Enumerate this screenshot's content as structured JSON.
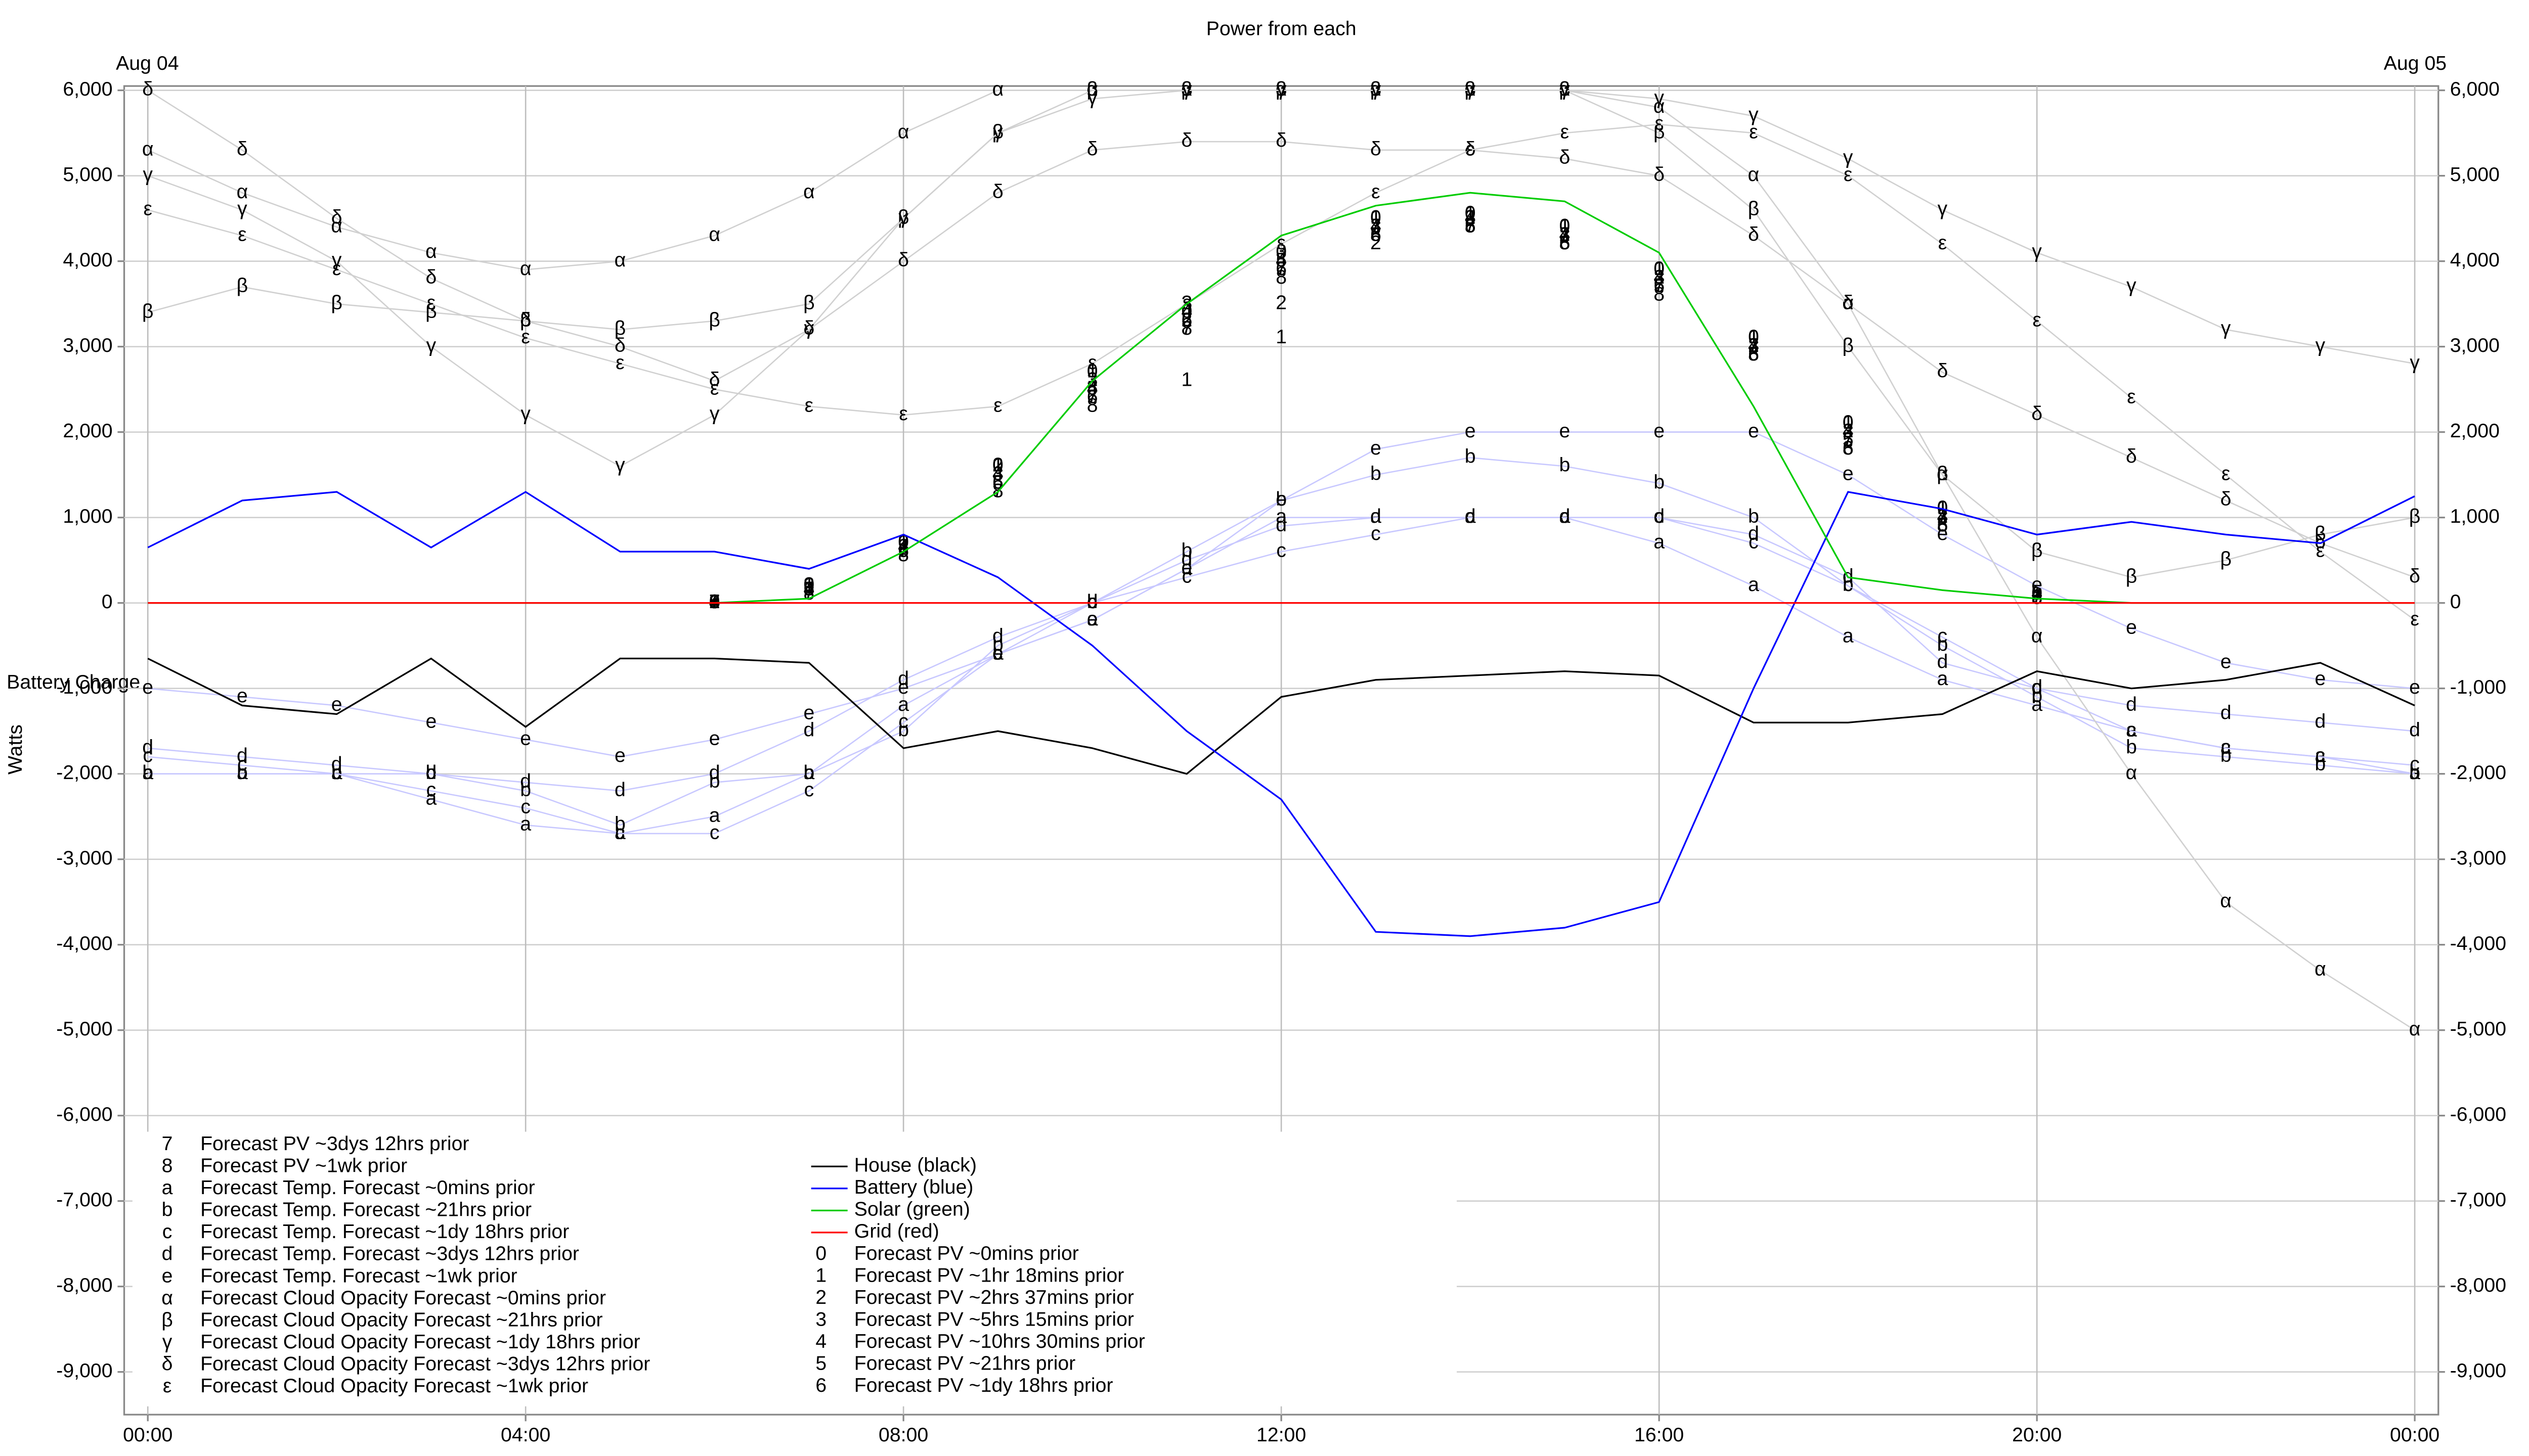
{
  "chart_data": {
    "type": "line",
    "title": "Power from each",
    "xlabel_left": "Aug 04",
    "xlabel_right": "Aug 05",
    "ylabel": "Watts",
    "annotation": "Battery Charge",
    "xlim": [
      -0.25,
      24.25
    ],
    "ylim": [
      -9500,
      6050
    ],
    "grid": true,
    "xticks": [
      {
        "value": 0,
        "label": "00:00"
      },
      {
        "value": 4,
        "label": "04:00"
      },
      {
        "value": 8,
        "label": "08:00"
      },
      {
        "value": 12,
        "label": "12:00"
      },
      {
        "value": 16,
        "label": "16:00"
      },
      {
        "value": 20,
        "label": "20:00"
      },
      {
        "value": 24,
        "label": "00:00"
      }
    ],
    "yticks": [
      {
        "value": -9000,
        "label": "-9,000"
      },
      {
        "value": -8000,
        "label": "-8,000"
      },
      {
        "value": -7000,
        "label": "-7,000"
      },
      {
        "value": -6000,
        "label": "-6,000"
      },
      {
        "value": -5000,
        "label": "-5,000"
      },
      {
        "value": -4000,
        "label": "-4,000"
      },
      {
        "value": -3000,
        "label": "-3,000"
      },
      {
        "value": -2000,
        "label": "-2,000"
      },
      {
        "value": -1000,
        "label": "-1,000"
      },
      0,
      {
        "value": 1000,
        "label": "1,000"
      },
      {
        "value": 2000,
        "label": "2,000"
      },
      {
        "value": 3000,
        "label": "3,000"
      },
      {
        "value": 4000,
        "label": "4,000"
      },
      {
        "value": 5000,
        "label": "5,000"
      },
      {
        "value": 6000,
        "label": "6,000"
      }
    ],
    "x": [
      0,
      1,
      2,
      3,
      4,
      5,
      6,
      7,
      8,
      9,
      10,
      11,
      12,
      13,
      14,
      15,
      16,
      17,
      18,
      19,
      20,
      21,
      22,
      23,
      24
    ],
    "series": [
      {
        "name": "House (black)",
        "color": "#000000",
        "line": true,
        "values": [
          -650,
          -1200,
          -1300,
          -650,
          -1450,
          -650,
          -650,
          -700,
          -1700,
          -1500,
          -1700,
          -2000,
          -1100,
          -900,
          -850,
          -800,
          -850,
          -1400,
          -1400,
          -1300,
          -800,
          -1000,
          -900,
          -700,
          -1200
        ]
      },
      {
        "name": "Battery (blue)",
        "color": "#0000ff",
        "line": true,
        "values": [
          650,
          1200,
          1300,
          650,
          1300,
          600,
          600,
          400,
          800,
          300,
          -500,
          -1500,
          -2300,
          -3850,
          -3900,
          -3800,
          -3500,
          -1000,
          1300,
          1100,
          800,
          950,
          800,
          700,
          1250
        ]
      },
      {
        "name": "Solar (green)",
        "color": "#00cc00",
        "line": true,
        "values": [
          0,
          0,
          0,
          0,
          0,
          0,
          0,
          50,
          600,
          1300,
          2600,
          3500,
          4300,
          4650,
          4800,
          4700,
          4100,
          2300,
          300,
          150,
          50,
          0,
          0,
          0,
          0
        ]
      },
      {
        "name": "Grid (red)",
        "color": "#ff0000",
        "line": true,
        "values": [
          0,
          0,
          0,
          0,
          0,
          0,
          0,
          0,
          0,
          0,
          0,
          0,
          0,
          0,
          0,
          0,
          0,
          0,
          0,
          0,
          0,
          0,
          0,
          0,
          0
        ]
      },
      {
        "name": "Forecast PV ~0mins prior",
        "marker": "0",
        "color": "#000000",
        "line": false,
        "values": [
          null,
          null,
          null,
          null,
          null,
          null,
          0,
          200,
          700,
          1600,
          2700,
          3400,
          4100,
          4500,
          4550,
          4400,
          3900,
          3100,
          2100,
          1100,
          100,
          null,
          null,
          null,
          null
        ]
      },
      {
        "name": "Forecast PV ~1hr 18mins prior",
        "marker": "1",
        "color": "#000000",
        "line": false,
        "values": [
          null,
          null,
          null,
          null,
          null,
          null,
          0,
          200,
          700,
          1600,
          2700,
          2600,
          3100,
          4500,
          4550,
          4400,
          3900,
          3100,
          2100,
          1100,
          100,
          null,
          null,
          null,
          null
        ]
      },
      {
        "name": "Forecast PV ~2hrs 37mins prior",
        "marker": "2",
        "color": "#000000",
        "line": false,
        "values": [
          null,
          null,
          null,
          null,
          null,
          null,
          0,
          200,
          700,
          1600,
          2600,
          3300,
          3500,
          4200,
          4500,
          4300,
          3800,
          3000,
          2000,
          1000,
          100,
          null,
          null,
          null,
          null
        ]
      },
      {
        "name": "Forecast PV ~5hrs 15mins prior",
        "marker": "3",
        "color": "#000000",
        "line": false,
        "values": [
          null,
          null,
          null,
          null,
          null,
          null,
          0,
          200,
          650,
          1500,
          2600,
          3500,
          4100,
          4400,
          4500,
          4300,
          3800,
          3000,
          2000,
          1000,
          100,
          null,
          null,
          null,
          null
        ]
      },
      {
        "name": "Forecast PV ~10hrs 30mins prior",
        "marker": "4",
        "color": "#000000",
        "line": false,
        "values": [
          null,
          null,
          null,
          null,
          null,
          null,
          0,
          150,
          650,
          1500,
          2500,
          3400,
          4000,
          4400,
          4500,
          4300,
          3800,
          3000,
          2000,
          1000,
          100,
          null,
          null,
          null,
          null
        ]
      },
      {
        "name": "Forecast PV ~21hrs prior",
        "marker": "5",
        "color": "#000000",
        "line": false,
        "values": [
          null,
          null,
          null,
          null,
          null,
          null,
          0,
          150,
          600,
          1400,
          2500,
          3300,
          4000,
          4300,
          4400,
          4200,
          3700,
          2900,
          1900,
          900,
          50,
          null,
          null,
          null,
          null
        ]
      },
      {
        "name": "Forecast PV ~1dy 18hrs prior",
        "marker": "6",
        "color": "#000000",
        "line": false,
        "values": [
          null,
          null,
          null,
          null,
          null,
          null,
          0,
          150,
          600,
          1400,
          2400,
          3300,
          3900,
          4300,
          4400,
          4200,
          3700,
          2900,
          1800,
          900,
          50,
          null,
          null,
          null,
          null
        ]
      },
      {
        "name": "Forecast PV ~3dys 12hrs prior",
        "marker": "7",
        "color": "#000000",
        "line": false,
        "values": [
          null,
          null,
          null,
          null,
          null,
          null,
          0,
          100,
          600,
          1300,
          2400,
          3200,
          3900,
          4400,
          4400,
          4300,
          3700,
          3000,
          1900,
          1000,
          50,
          null,
          null,
          null,
          null
        ]
      },
      {
        "name": "Forecast PV ~1wk prior",
        "marker": "8",
        "color": "#000000",
        "line": false,
        "values": [
          null,
          null,
          null,
          null,
          null,
          null,
          0,
          100,
          550,
          1300,
          2300,
          3200,
          3800,
          4300,
          4400,
          4200,
          3600,
          2900,
          1800,
          900,
          50,
          null,
          null,
          null,
          null
        ]
      },
      {
        "name": "Forecast Temp. Forecast ~0mins prior",
        "marker": "a",
        "color": "#c8c8ff",
        "line": true,
        "values": [
          -2000,
          -2000,
          -2000,
          -2300,
          -2600,
          -2700,
          -2500,
          -2000,
          -1200,
          -600,
          -200,
          400,
          1000,
          1000,
          1000,
          1000,
          700,
          200,
          -400,
          -900,
          -1200,
          -1500,
          -1700,
          -1800,
          -2000
        ]
      },
      {
        "name": "Forecast Temp. Forecast ~21hrs prior",
        "marker": "b",
        "color": "#c8c8ff",
        "line": true,
        "values": [
          -2000,
          -2000,
          -2000,
          -2000,
          -2200,
          -2600,
          -2100,
          -2000,
          -1500,
          -500,
          0,
          600,
          1200,
          1500,
          1700,
          1600,
          1400,
          1000,
          200,
          -500,
          -1100,
          -1700,
          -1800,
          -1900,
          -2000
        ]
      },
      {
        "name": "Forecast Temp. Forecast ~1dy 18hrs prior",
        "marker": "c",
        "color": "#c8c8ff",
        "line": true,
        "values": [
          -1800,
          -1900,
          -2000,
          -2200,
          -2400,
          -2700,
          -2700,
          -2200,
          -1400,
          -600,
          0,
          300,
          600,
          800,
          1000,
          1000,
          1000,
          700,
          200,
          -400,
          -1000,
          -1500,
          -1700,
          -1800,
          -1900
        ]
      },
      {
        "name": "Forecast Temp. Forecast ~3dys 12hrs prior",
        "marker": "d",
        "color": "#c8c8ff",
        "line": true,
        "values": [
          -1700,
          -1800,
          -1900,
          -2000,
          -2100,
          -2200,
          -2000,
          -1500,
          -900,
          -400,
          0,
          500,
          900,
          1000,
          1000,
          1000,
          1000,
          800,
          300,
          -700,
          -1000,
          -1200,
          -1300,
          -1400,
          -1500
        ]
      },
      {
        "name": "Forecast Temp. Forecast ~1wk prior",
        "marker": "e",
        "color": "#c8c8ff",
        "line": true,
        "values": [
          -1000,
          -1100,
          -1200,
          -1400,
          -1600,
          -1800,
          -1600,
          -1300,
          -1000,
          -600,
          -200,
          400,
          1200,
          1800,
          2000,
          2000,
          2000,
          2000,
          1500,
          800,
          200,
          -300,
          -700,
          -900,
          -1000
        ]
      },
      {
        "name": "Forecast Cloud Opacity Forecast ~0mins prior",
        "marker": "α",
        "color": "#d0d0d0",
        "line": true,
        "values": [
          5300,
          4800,
          4400,
          4100,
          3900,
          4000,
          4300,
          4800,
          5500,
          6000,
          6000,
          6000,
          6000,
          6000,
          6000,
          6000,
          5800,
          5000,
          3500,
          1500,
          -400,
          -2000,
          -3500,
          -4300,
          -5000
        ]
      },
      {
        "name": "Forecast Cloud Opacity Forecast ~21hrs prior",
        "marker": "β",
        "color": "#d0d0d0",
        "line": true,
        "values": [
          3400,
          3700,
          3500,
          3400,
          3300,
          3200,
          3300,
          3500,
          4500,
          5500,
          6000,
          6000,
          6000,
          6000,
          6000,
          6000,
          5500,
          4600,
          3000,
          1500,
          600,
          300,
          500,
          800,
          1000
        ]
      },
      {
        "name": "Forecast Cloud Opacity Forecast ~1dy 18hrs prior",
        "marker": "γ",
        "color": "#d0d0d0",
        "line": true,
        "values": [
          5000,
          4600,
          4000,
          3000,
          2200,
          1600,
          2200,
          3200,
          4500,
          5500,
          5900,
          6000,
          6000,
          6000,
          6000,
          6000,
          5900,
          5700,
          5200,
          4600,
          4100,
          3700,
          3200,
          3000,
          2800
        ]
      },
      {
        "name": "Forecast Cloud Opacity Forecast ~3dys 12hrs prior",
        "marker": "δ",
        "color": "#d0d0d0",
        "line": true,
        "values": [
          6000,
          5300,
          4500,
          3800,
          3300,
          3000,
          2600,
          3200,
          4000,
          4800,
          5300,
          5400,
          5400,
          5300,
          5300,
          5200,
          5000,
          4300,
          3500,
          2700,
          2200,
          1700,
          1200,
          700,
          300
        ]
      },
      {
        "name": "Forecast Cloud Opacity Forecast ~1wk prior",
        "marker": "ε",
        "color": "#d0d0d0",
        "line": true,
        "values": [
          4600,
          4300,
          3900,
          3500,
          3100,
          2800,
          2500,
          2300,
          2200,
          2300,
          2800,
          3500,
          4200,
          4800,
          5300,
          5500,
          5600,
          5500,
          5000,
          4200,
          3300,
          2400,
          1500,
          600,
          -200
        ]
      }
    ]
  }
}
